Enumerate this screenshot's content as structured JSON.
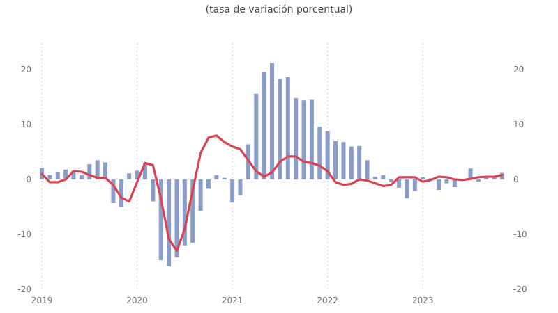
{
  "chart_data": {
    "type": "bar+line",
    "title": "(tasa de variación porcentual)",
    "xlabel": "",
    "ylabel": "",
    "ylim": [
      -20,
      20
    ],
    "yticks": [
      "20",
      "10",
      "0",
      "-10",
      "-20"
    ],
    "yticks_right": [
      "20",
      "10",
      "0",
      "-10",
      "-20"
    ],
    "x_tick_labels": [
      "2019",
      "2020",
      "2021",
      "2022",
      "2023"
    ],
    "start": "2019-01",
    "frequency": "monthly",
    "grid": "vertical dotted at year starts",
    "colors": {
      "bars": "#8a9dc9",
      "line": "#d9424e"
    },
    "series": [
      {
        "name": "bars",
        "type": "bar",
        "values": [
          2.1,
          0.8,
          1.3,
          1.8,
          1.6,
          0.8,
          2.8,
          3.5,
          3.1,
          -4.3,
          -5.0,
          1.1,
          1.6,
          3.0,
          -4.0,
          -14.7,
          -15.8,
          -14.2,
          -12.0,
          -11.5,
          -5.7,
          -1.7,
          0.8,
          0.3,
          -4.2,
          -2.9,
          6.4,
          15.6,
          19.6,
          21.2,
          18.3,
          18.6,
          14.8,
          14.4,
          14.5,
          9.6,
          8.8,
          7.0,
          6.8,
          6.0,
          6.1,
          3.5,
          0.5,
          0.8,
          -0.5,
          -1.5,
          -3.4,
          -2.1,
          0.4,
          0.2,
          -1.9,
          -0.7,
          -1.4,
          -0.2,
          2.0,
          -0.4,
          0.4,
          0.4,
          1.2
        ]
      },
      {
        "name": "line",
        "type": "line",
        "values": [
          1.0,
          -0.5,
          -0.5,
          0,
          1.5,
          1.4,
          0.8,
          0.3,
          0.3,
          -1.0,
          -3.3,
          -4.0,
          -0.5,
          3.0,
          2.6,
          -3.5,
          -10.8,
          -13.0,
          -9.0,
          -2.0,
          4.8,
          7.6,
          8.0,
          6.8,
          6.0,
          5.5,
          3.5,
          1.5,
          0.5,
          1.3,
          3.2,
          4.2,
          4.2,
          3.2,
          3.0,
          2.5,
          1.5,
          -0.5,
          -1.0,
          -0.8,
          0,
          -0.2,
          -0.7,
          -1.2,
          -1.0,
          0.4,
          0.4,
          0.4,
          -0.4,
          -0.1,
          0.5,
          0.4,
          0,
          -0.1,
          0.1,
          0.4,
          0.5,
          0.5,
          0.8
        ]
      }
    ]
  }
}
